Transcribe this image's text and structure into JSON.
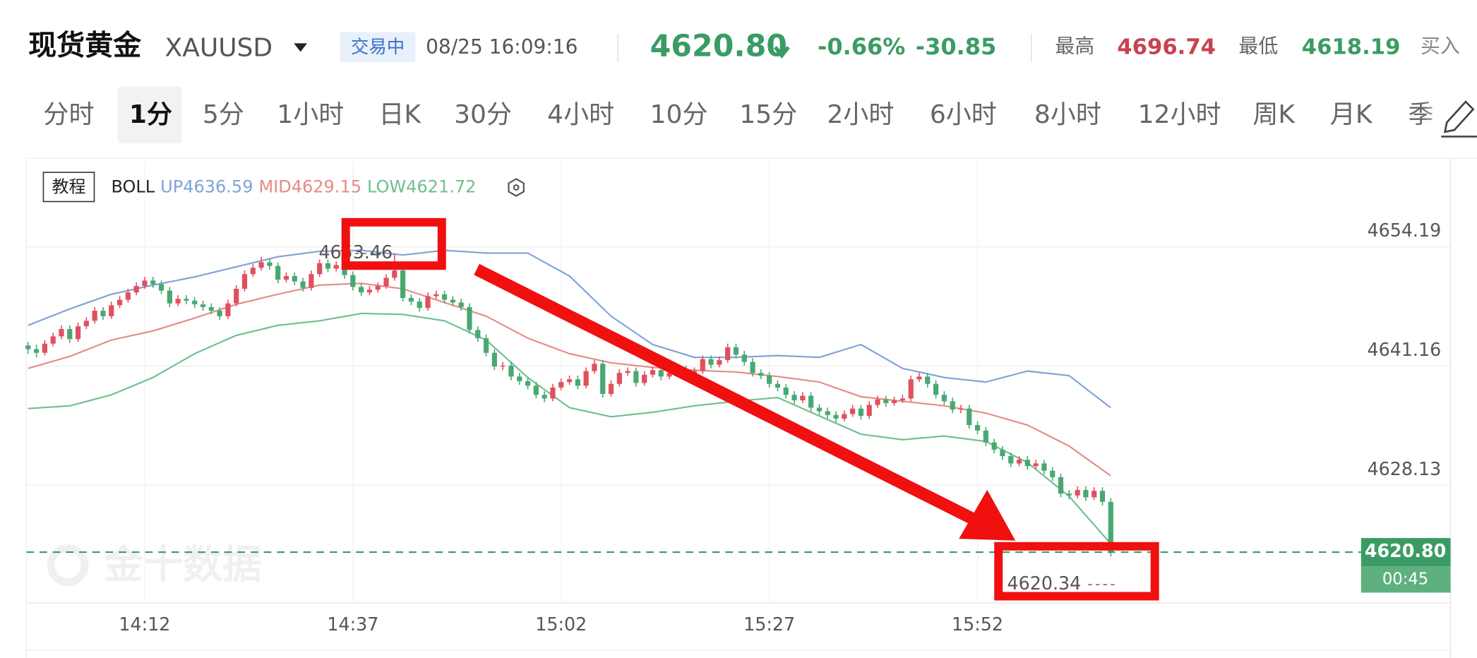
{
  "header": {
    "title": "现货黄金",
    "symbol": "XAUUSD",
    "status": "交易中",
    "time": "08/25 16:09:16",
    "price": "4620.80",
    "change_pct": "-0.66%",
    "change": "-30.85",
    "high_label": "最高",
    "high": "4696.74",
    "low_label": "最低",
    "low": "4618.19",
    "buy_label": "买入"
  },
  "timeframes": {
    "items": [
      "分时",
      "1分",
      "5分",
      "1小时",
      "日K",
      "30分",
      "4小时",
      "10分",
      "15分",
      "2小时",
      "6小时",
      "8小时",
      "12小时",
      "周K",
      "月K",
      "季"
    ],
    "selected": 1
  },
  "chart_data": {
    "type": "candlestick",
    "tutorial": "教程",
    "indicator": "BOLL",
    "watermark": "金十数据",
    "countdown": "00:45",
    "up_color": "#e0505e",
    "down_color": "#49a872",
    "grid": true,
    "xlim": [
      -0.2,
      170.8
    ],
    "ylim": [
      4615.26,
      4663.67
    ],
    "yticks": [
      4654.19,
      4641.16,
      4628.13
    ],
    "xticks": [
      {
        "value": 14,
        "label": "14:12"
      },
      {
        "value": 39,
        "label": "14:37"
      },
      {
        "value": 64,
        "label": "15:02"
      },
      {
        "value": 89,
        "label": "15:27"
      },
      {
        "value": 114,
        "label": "15:52"
      }
    ],
    "max_index": 44,
    "min_index": 130,
    "candles": [
      [
        4643.4,
        4643.8,
        4642.5,
        4643.0
      ],
      [
        4643.0,
        4643.5,
        4642.1,
        4642.6
      ],
      [
        4642.6,
        4644.0,
        4642.3,
        4643.6
      ],
      [
        4643.6,
        4644.8,
        4643.3,
        4644.4
      ],
      [
        4644.4,
        4645.6,
        4644.1,
        4645.2
      ],
      [
        4645.2,
        4645.6,
        4643.7,
        4644.1
      ],
      [
        4644.1,
        4645.9,
        4643.8,
        4645.5
      ],
      [
        4645.5,
        4646.5,
        4645.2,
        4646.1
      ],
      [
        4646.1,
        4647.6,
        4645.8,
        4647.2
      ],
      [
        4647.2,
        4647.6,
        4646.2,
        4646.6
      ],
      [
        4646.6,
        4648.2,
        4646.3,
        4647.8
      ],
      [
        4647.8,
        4648.8,
        4647.5,
        4648.4
      ],
      [
        4648.4,
        4649.6,
        4648.1,
        4649.2
      ],
      [
        4649.2,
        4650.3,
        4648.9,
        4649.9
      ],
      [
        4649.9,
        4650.9,
        4649.6,
        4650.5
      ],
      [
        4650.5,
        4650.9,
        4649.7,
        4650.1
      ],
      [
        4650.1,
        4650.5,
        4649.0,
        4649.4
      ],
      [
        4649.4,
        4649.8,
        4647.6,
        4648.0
      ],
      [
        4648.0,
        4648.9,
        4647.7,
        4648.5
      ],
      [
        4648.5,
        4648.9,
        4647.9,
        4648.3
      ],
      [
        4648.3,
        4648.7,
        4647.5,
        4647.9
      ],
      [
        4647.9,
        4648.3,
        4647.2,
        4647.6
      ],
      [
        4647.6,
        4648.0,
        4646.8,
        4647.2
      ],
      [
        4647.2,
        4647.6,
        4646.2,
        4646.6
      ],
      [
        4646.6,
        4648.4,
        4646.3,
        4648.0
      ],
      [
        4648.0,
        4650.0,
        4647.7,
        4649.6
      ],
      [
        4649.6,
        4651.6,
        4649.3,
        4651.2
      ],
      [
        4651.2,
        4652.3,
        4650.9,
        4651.9
      ],
      [
        4651.9,
        4653.1,
        4651.6,
        4652.5
      ],
      [
        4652.5,
        4652.9,
        4651.7,
        4652.1
      ],
      [
        4652.1,
        4652.5,
        4650.2,
        4650.6
      ],
      [
        4650.6,
        4651.4,
        4650.3,
        4651.0
      ],
      [
        4651.0,
        4651.4,
        4650.0,
        4650.4
      ],
      [
        4650.4,
        4650.8,
        4649.3,
        4649.7
      ],
      [
        4649.7,
        4651.6,
        4649.4,
        4651.2
      ],
      [
        4651.2,
        4652.8,
        4650.9,
        4652.4
      ],
      [
        4652.4,
        4652.8,
        4651.4,
        4651.8
      ],
      [
        4651.8,
        4652.6,
        4651.5,
        4652.2
      ],
      [
        4652.2,
        4652.6,
        4650.7,
        4651.1
      ],
      [
        4651.1,
        4651.5,
        4649.4,
        4649.8
      ],
      [
        4649.8,
        4650.2,
        4648.8,
        4649.2
      ],
      [
        4649.2,
        4649.9,
        4648.9,
        4649.5
      ],
      [
        4649.5,
        4650.3,
        4649.2,
        4649.9
      ],
      [
        4649.9,
        4651.2,
        4649.6,
        4650.8
      ],
      [
        4650.8,
        4653.46,
        4650.5,
        4651.6
      ],
      [
        4651.6,
        4652.0,
        4648.2,
        4648.6
      ],
      [
        4648.6,
        4649.0,
        4647.8,
        4648.2
      ],
      [
        4648.2,
        4648.6,
        4647.1,
        4647.5
      ],
      [
        4647.5,
        4649.2,
        4647.2,
        4648.8
      ],
      [
        4648.8,
        4649.4,
        4648.5,
        4649.0
      ],
      [
        4649.0,
        4649.4,
        4648.0,
        4648.4
      ],
      [
        4648.4,
        4648.8,
        4647.7,
        4648.1
      ],
      [
        4648.1,
        4648.5,
        4647.2,
        4647.6
      ],
      [
        4647.6,
        4648.0,
        4644.7,
        4645.1
      ],
      [
        4645.1,
        4645.5,
        4643.8,
        4644.2
      ],
      [
        4644.2,
        4644.6,
        4642.2,
        4642.6
      ],
      [
        4642.6,
        4643.0,
        4640.7,
        4641.1
      ],
      [
        4641.1,
        4641.6,
        4640.7,
        4641.2
      ],
      [
        4641.2,
        4641.6,
        4639.6,
        4640.0
      ],
      [
        4640.0,
        4640.4,
        4639.1,
        4639.5
      ],
      [
        4639.5,
        4639.9,
        4638.6,
        4639.0
      ],
      [
        4639.0,
        4639.4,
        4637.6,
        4638.0
      ],
      [
        4638.0,
        4638.4,
        4637.2,
        4637.6
      ],
      [
        4637.6,
        4639.2,
        4637.3,
        4638.8
      ],
      [
        4638.8,
        4639.8,
        4638.5,
        4639.4
      ],
      [
        4639.4,
        4640.1,
        4639.1,
        4639.7
      ],
      [
        4639.7,
        4640.1,
        4638.6,
        4639.0
      ],
      [
        4639.0,
        4641.0,
        4638.7,
        4640.6
      ],
      [
        4640.6,
        4641.8,
        4640.3,
        4641.4
      ],
      [
        4641.4,
        4641.8,
        4637.7,
        4638.1
      ],
      [
        4638.1,
        4639.6,
        4637.8,
        4639.2
      ],
      [
        4639.2,
        4640.8,
        4638.9,
        4640.4
      ],
      [
        4640.4,
        4641.0,
        4640.1,
        4640.6
      ],
      [
        4640.6,
        4641.0,
        4638.9,
        4639.3
      ],
      [
        4639.3,
        4640.6,
        4639.0,
        4640.2
      ],
      [
        4640.2,
        4641.1,
        4639.9,
        4640.7
      ],
      [
        4640.7,
        4641.1,
        4639.6,
        4640.0
      ],
      [
        4640.0,
        4640.8,
        4639.7,
        4640.4
      ],
      [
        4640.4,
        4641.2,
        4640.1,
        4640.8
      ],
      [
        4640.8,
        4641.2,
        4639.7,
        4640.1
      ],
      [
        4640.1,
        4641.0,
        4639.8,
        4640.6
      ],
      [
        4640.6,
        4642.3,
        4640.3,
        4641.9
      ],
      [
        4641.9,
        4642.3,
        4640.9,
        4641.3
      ],
      [
        4641.3,
        4642.2,
        4641.0,
        4641.8
      ],
      [
        4641.8,
        4643.6,
        4641.5,
        4643.2
      ],
      [
        4643.2,
        4643.6,
        4642.0,
        4642.4
      ],
      [
        4642.4,
        4642.8,
        4641.2,
        4641.6
      ],
      [
        4641.6,
        4642.0,
        4640.0,
        4640.4
      ],
      [
        4640.4,
        4640.8,
        4639.7,
        4640.1
      ],
      [
        4640.1,
        4640.5,
        4638.8,
        4639.2
      ],
      [
        4639.2,
        4639.6,
        4638.4,
        4638.8
      ],
      [
        4638.8,
        4639.2,
        4637.6,
        4638.0
      ],
      [
        4638.0,
        4638.4,
        4637.0,
        4637.4
      ],
      [
        4637.4,
        4638.3,
        4637.1,
        4637.9
      ],
      [
        4637.9,
        4638.3,
        4636.2,
        4636.6
      ],
      [
        4636.6,
        4637.0,
        4635.8,
        4636.2
      ],
      [
        4636.2,
        4636.6,
        4635.4,
        4635.8
      ],
      [
        4635.8,
        4636.2,
        4635.0,
        4635.4
      ],
      [
        4635.4,
        4636.3,
        4635.1,
        4635.9
      ],
      [
        4635.9,
        4636.9,
        4635.6,
        4636.5
      ],
      [
        4636.5,
        4636.9,
        4635.3,
        4635.7
      ],
      [
        4635.7,
        4637.3,
        4635.4,
        4636.9
      ],
      [
        4636.9,
        4637.9,
        4636.6,
        4637.5
      ],
      [
        4637.5,
        4637.9,
        4636.7,
        4637.1
      ],
      [
        4637.1,
        4637.8,
        4636.8,
        4637.4
      ],
      [
        4637.4,
        4638.0,
        4637.1,
        4637.6
      ],
      [
        4637.6,
        4640.1,
        4637.3,
        4639.7
      ],
      [
        4639.7,
        4640.4,
        4639.4,
        4640.0
      ],
      [
        4640.0,
        4640.4,
        4638.8,
        4639.2
      ],
      [
        4639.2,
        4639.6,
        4637.6,
        4638.0
      ],
      [
        4638.0,
        4638.4,
        4636.9,
        4637.3
      ],
      [
        4637.3,
        4637.7,
        4636.0,
        4636.4
      ],
      [
        4636.4,
        4636.9,
        4636.0,
        4636.5
      ],
      [
        4636.5,
        4636.9,
        4634.3,
        4634.7
      ],
      [
        4634.7,
        4635.1,
        4633.7,
        4634.1
      ],
      [
        4634.1,
        4634.5,
        4632.4,
        4632.8
      ],
      [
        4632.8,
        4633.2,
        4631.6,
        4632.0
      ],
      [
        4632.0,
        4632.4,
        4630.9,
        4631.3
      ],
      [
        4631.3,
        4631.7,
        4630.1,
        4630.5
      ],
      [
        4630.5,
        4631.3,
        4630.2,
        4630.9
      ],
      [
        4630.9,
        4631.3,
        4629.8,
        4630.2
      ],
      [
        4630.2,
        4630.9,
        4629.9,
        4630.5
      ],
      [
        4630.5,
        4630.9,
        4629.3,
        4629.7
      ],
      [
        4629.7,
        4630.1,
        4628.6,
        4629.0
      ],
      [
        4629.0,
        4629.4,
        4626.8,
        4627.2
      ],
      [
        4627.2,
        4627.6,
        4626.6,
        4627.0
      ],
      [
        4627.0,
        4628.0,
        4626.7,
        4627.6
      ],
      [
        4627.6,
        4628.0,
        4626.4,
        4626.8
      ],
      [
        4626.8,
        4627.9,
        4626.5,
        4627.5
      ],
      [
        4627.5,
        4627.9,
        4625.9,
        4626.3
      ],
      [
        4626.3,
        4626.7,
        4620.34,
        4620.8
      ]
    ],
    "series": [
      {
        "name": "UP",
        "color": "#7fa2d6",
        "x": [
          0,
          5,
          10,
          15,
          20,
          25,
          30,
          35,
          40,
          45,
          50,
          55,
          60,
          65,
          70,
          75,
          80,
          85,
          90,
          95,
          100,
          105,
          110,
          115,
          120,
          125,
          130
        ],
        "values": [
          4645.6,
          4647.4,
          4649.0,
          4650.0,
          4650.9,
          4652.0,
          4653.1,
          4653.7,
          4653.8,
          4653.3,
          4653.8,
          4653.5,
          4653.5,
          4651.0,
          4646.6,
          4643.5,
          4642.1,
          4642.1,
          4642.3,
          4642.1,
          4643.5,
          4640.9,
          4639.9,
          4639.4,
          4640.6,
          4640.1,
          4636.59
        ]
      },
      {
        "name": "MID",
        "color": "#e48b86",
        "x": [
          0,
          5,
          10,
          15,
          20,
          25,
          30,
          35,
          40,
          45,
          50,
          55,
          60,
          65,
          70,
          75,
          80,
          85,
          90,
          95,
          100,
          105,
          110,
          115,
          120,
          125,
          130
        ],
        "values": [
          4640.9,
          4642.2,
          4644.0,
          4645.0,
          4646.4,
          4647.9,
          4649.0,
          4650.0,
          4650.2,
          4649.6,
          4648.1,
          4646.6,
          4644.2,
          4642.5,
          4641.5,
          4641.0,
          4640.7,
          4640.5,
          4640.0,
          4639.4,
          4637.8,
          4637.3,
          4636.8,
          4636.0,
          4634.7,
          4632.4,
          4629.15
        ]
      },
      {
        "name": "LOW",
        "color": "#6fbf8c",
        "x": [
          0,
          5,
          10,
          15,
          20,
          25,
          30,
          35,
          40,
          45,
          50,
          55,
          60,
          65,
          70,
          75,
          80,
          85,
          90,
          95,
          100,
          105,
          110,
          115,
          120,
          125,
          130
        ],
        "values": [
          4636.5,
          4636.8,
          4638.0,
          4639.9,
          4642.5,
          4644.5,
          4645.6,
          4646.1,
          4646.9,
          4646.8,
          4646.1,
          4644.0,
          4639.9,
          4636.6,
          4635.6,
          4636.1,
          4636.8,
          4637.3,
          4637.7,
          4635.7,
          4633.7,
          4633.1,
          4633.5,
          4632.9,
          4630.6,
          4626.9,
          4621.72
        ]
      }
    ]
  }
}
